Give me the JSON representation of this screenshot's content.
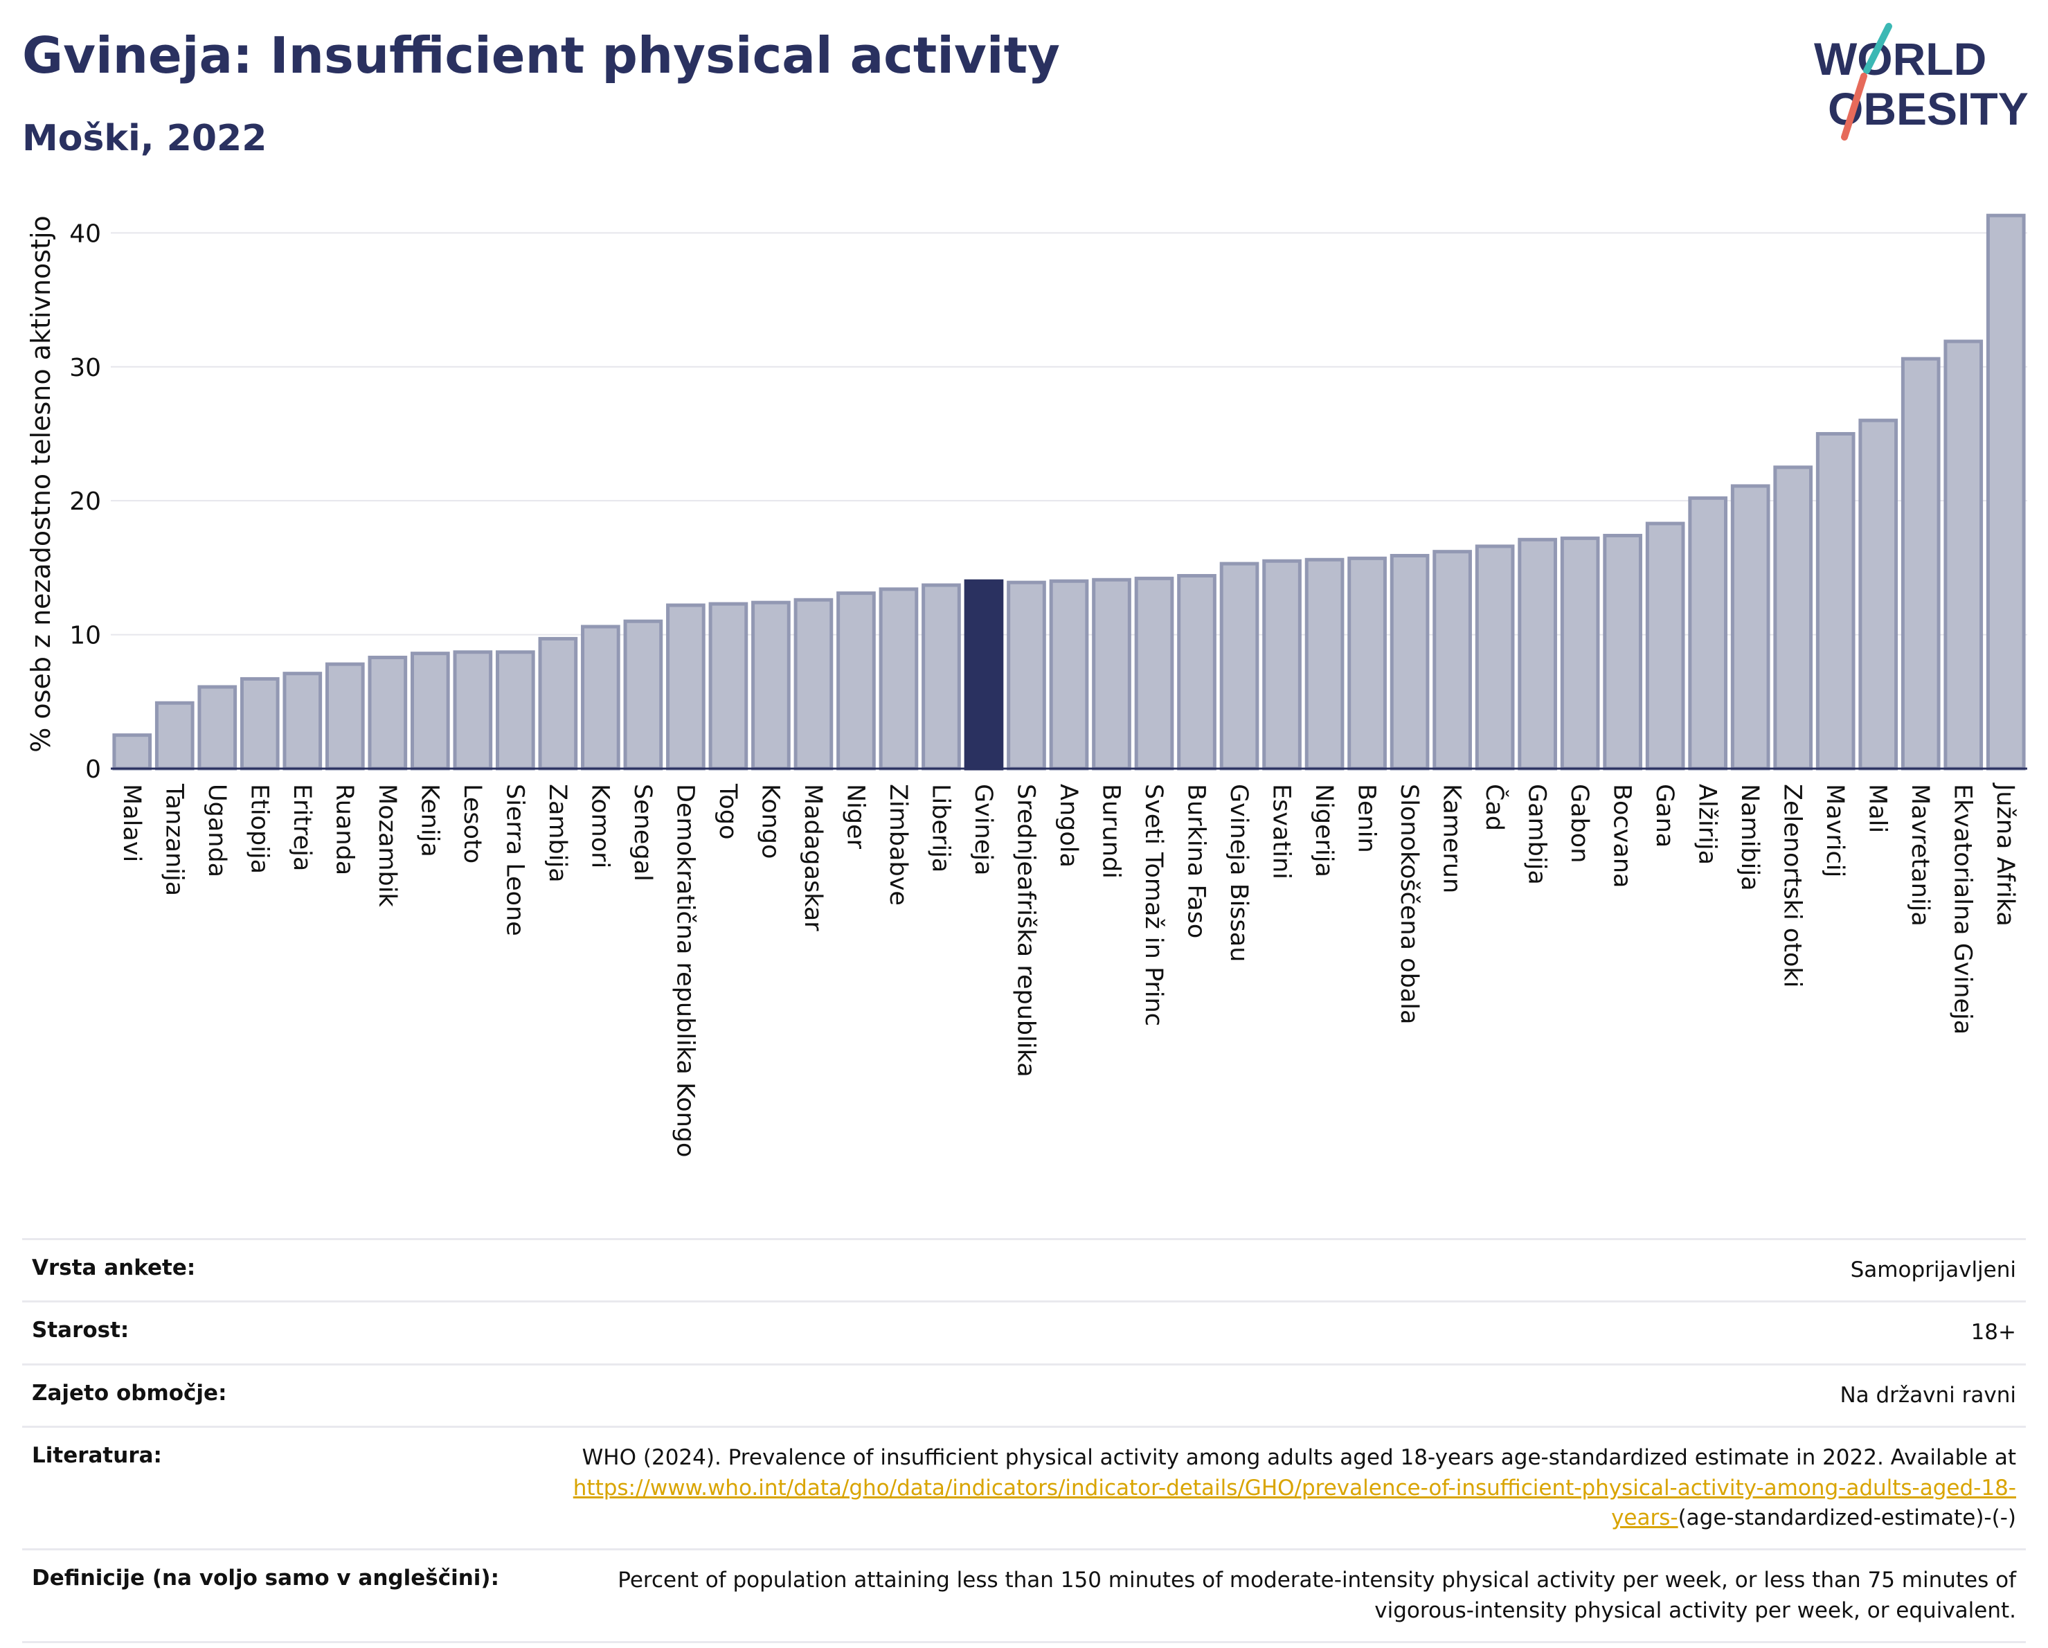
{
  "title": "Gvineja: Insufficient physical activity",
  "subtitle": "Moški, 2022",
  "logo": {
    "line1": "WORLD",
    "line2": "OBESITY"
  },
  "colors": {
    "highlight": "#2a3160",
    "bar_fill": "#b9bdcd",
    "bar_stroke": "#9298b3",
    "logo_teal": "#3bb8b4",
    "logo_coral": "#e66a5a",
    "link": "#d9a400"
  },
  "chart_data": {
    "type": "bar",
    "ylabel": "% oseb z nezadostno telesno aktivnostjo",
    "ylim": [
      0,
      42.5
    ],
    "yticks": [
      0,
      10,
      20,
      30,
      40
    ],
    "grid": true,
    "highlight": "Gvineja",
    "categories": [
      "Malavi",
      "Tanzanija",
      "Uganda",
      "Etiopija",
      "Eritreja",
      "Ruanda",
      "Mozambik",
      "Kenija",
      "Lesoto",
      "Sierra Leone",
      "Zambija",
      "Komori",
      "Senegal",
      "Demokratična republika Kongo",
      "Togo",
      "Kongo",
      "Madagaskar",
      "Niger",
      "Zimbabve",
      "Liberija",
      "Gvineja",
      "Srednjeafriška republika",
      "Angola",
      "Burundi",
      "Sveti Tomaž in Princ",
      "Burkina Faso",
      "Gvineja Bissau",
      "Esvatini",
      "Nigerija",
      "Benin",
      "Slonokoščena obala",
      "Kamerun",
      "Čad",
      "Gambija",
      "Gabon",
      "Bocvana",
      "Gana",
      "Alžirija",
      "Namibija",
      "Zelenortski otoki",
      "Mavricij",
      "Mali",
      "Mavretanija",
      "Ekvatorialna Gvineja",
      "Južna Afrika"
    ],
    "values": [
      2.5,
      4.9,
      6.1,
      6.7,
      7.1,
      7.8,
      8.3,
      8.6,
      8.7,
      8.7,
      9.7,
      10.6,
      11.0,
      12.2,
      12.3,
      12.4,
      12.6,
      13.1,
      13.4,
      13.7,
      14.0,
      13.9,
      14.0,
      14.1,
      14.2,
      14.4,
      15.3,
      15.5,
      15.6,
      15.7,
      15.9,
      16.2,
      16.6,
      17.1,
      17.2,
      17.4,
      18.3,
      20.2,
      21.1,
      22.5,
      25.0,
      26.0,
      30.6,
      31.9,
      41.3
    ]
  },
  "info": {
    "survey_label": "Vrsta ankete:",
    "survey_value": "Samoprijavljeni",
    "age_label": "Starost:",
    "age_value": "18+",
    "coverage_label": "Zajeto območje:",
    "coverage_value": "Na državni ravni",
    "literature_label": "Literatura:",
    "literature_text": "WHO (2024). Prevalence of insufficient physical activity among adults aged 18-years age-standardized estimate in 2022. Available at",
    "literature_link": "https://www.who.int/data/gho/data/indicators/indicator-details/GHO/prevalence-of-insufficient-physical-activity-among-adults-aged-18-years-",
    "literature_suffix": "(age-standardized-estimate)-(-)",
    "definitions_label": "Definicije (na voljo samo v angleščini):",
    "definitions_value": "Percent of population attaining less than 150 minutes of moderate-intensity physical activity per week, or less than 75 minutes of vigorous-intensity physical activity per week, or equivalent."
  }
}
